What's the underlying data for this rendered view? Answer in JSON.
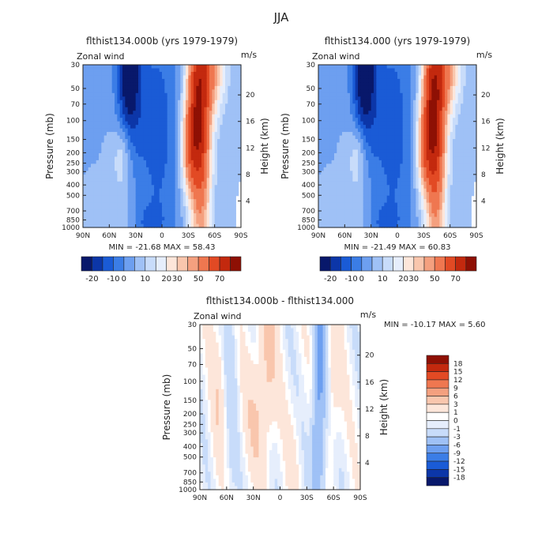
{
  "figure_title": "JJA",
  "chart_data": [
    {
      "type": "heatmap",
      "title": "flthist134.000b (yrs 1979-1979)",
      "field_label": "Zonal wind",
      "units": "m/s",
      "ylabel": "Pressure (mb)",
      "y2label": "Height (km)",
      "x_ticks": [
        "90N",
        "60N",
        "30N",
        "0",
        "30S",
        "60S",
        "90S"
      ],
      "y_ticks": [
        "30",
        "50",
        "70",
        "100",
        "150",
        "200",
        "250",
        "300",
        "400",
        "500",
        "700",
        "850",
        "1000"
      ],
      "y2_ticks": [
        "20",
        "16",
        "12",
        "8",
        "4"
      ],
      "stats": "MIN = -21.68   MAX =  58.43",
      "min": -21.68,
      "max": 58.43,
      "colorbar_levels": [
        "-20",
        "-10",
        "0",
        "10",
        "20",
        "30",
        "50",
        "70"
      ],
      "colorbar_colors": [
        "#08186b",
        "#0c36a8",
        "#1a5bd6",
        "#3b7de6",
        "#6d9ff0",
        "#9fc1f6",
        "#c8dcfa",
        "#e6eefc",
        "#fde6da",
        "#f9c6ad",
        "#f4a07f",
        "#ef7750",
        "#e24a24",
        "#c3290e",
        "#8e1004"
      ],
      "ylim": [
        1000,
        30
      ],
      "xlim": [
        "90N",
        "90S"
      ]
    },
    {
      "type": "heatmap",
      "title": "flthist134.000 (yrs 1979-1979)",
      "field_label": "Zonal wind",
      "units": "m/s",
      "ylabel": "Pressure (mb)",
      "y2label": "Height (km)",
      "x_ticks": [
        "90N",
        "60N",
        "30N",
        "0",
        "30S",
        "60S",
        "90S"
      ],
      "y_ticks": [
        "30",
        "50",
        "70",
        "100",
        "150",
        "200",
        "250",
        "300",
        "400",
        "500",
        "700",
        "850",
        "1000"
      ],
      "y2_ticks": [
        "20",
        "16",
        "12",
        "8",
        "4"
      ],
      "stats": "MIN = -21.49   MAX =  60.83",
      "min": -21.49,
      "max": 60.83,
      "colorbar_levels": [
        "-20",
        "-10",
        "0",
        "10",
        "20",
        "30",
        "50",
        "70"
      ],
      "colorbar_colors": [
        "#08186b",
        "#0c36a8",
        "#1a5bd6",
        "#3b7de6",
        "#6d9ff0",
        "#9fc1f6",
        "#c8dcfa",
        "#e6eefc",
        "#fde6da",
        "#f9c6ad",
        "#f4a07f",
        "#ef7750",
        "#e24a24",
        "#c3290e",
        "#8e1004"
      ],
      "ylim": [
        1000,
        30
      ],
      "xlim": [
        "90N",
        "90S"
      ]
    },
    {
      "type": "heatmap",
      "title": "flthist134.000b - flthist134.000",
      "field_label": "Zonal wind",
      "units": "m/s",
      "ylabel": "Pressure (mb)",
      "y2label": "Height (km)",
      "x_ticks": [
        "90N",
        "60N",
        "30N",
        "0",
        "30S",
        "60S",
        "90S"
      ],
      "y_ticks": [
        "30",
        "50",
        "70",
        "100",
        "150",
        "200",
        "250",
        "300",
        "400",
        "500",
        "700",
        "850",
        "1000"
      ],
      "y2_ticks": [
        "20",
        "16",
        "12",
        "8",
        "4"
      ],
      "stats": "MIN = -10.17   MAX =   5.60",
      "min": -10.17,
      "max": 5.6,
      "colorbar_levels": [
        "18",
        "15",
        "12",
        "9",
        "6",
        "3",
        "1",
        "0",
        "-1",
        "-3",
        "-6",
        "-9",
        "-12",
        "-15",
        "-18"
      ],
      "colorbar_colors": [
        "#8e1004",
        "#c3290e",
        "#e24a24",
        "#ef7750",
        "#f4a07f",
        "#f9c6ad",
        "#fde6da",
        "#ffffff",
        "#e6eefc",
        "#c8dcfa",
        "#9fc1f6",
        "#6d9ff0",
        "#3b7de6",
        "#1a5bd6",
        "#0c36a8",
        "#08186b"
      ],
      "ylim": [
        1000,
        30
      ],
      "xlim": [
        "90N",
        "90S"
      ]
    }
  ]
}
